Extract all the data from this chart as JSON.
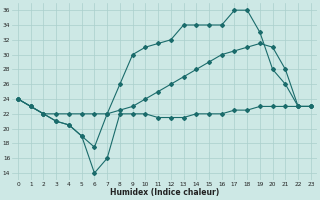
{
  "xlabel": "Humidex (Indice chaleur)",
  "background_color": "#cde8e5",
  "grid_color": "#aacfcc",
  "line_color": "#1a6b6b",
  "xlim": [
    -0.5,
    23.5
  ],
  "ylim": [
    13,
    37
  ],
  "yticks": [
    14,
    16,
    18,
    20,
    22,
    24,
    26,
    28,
    30,
    32,
    34,
    36
  ],
  "xticks": [
    0,
    1,
    2,
    3,
    4,
    5,
    6,
    7,
    8,
    9,
    10,
    11,
    12,
    13,
    14,
    15,
    16,
    17,
    18,
    19,
    20,
    21,
    22,
    23
  ],
  "series": [
    {
      "x": [
        0,
        1,
        2,
        3,
        4,
        5,
        6,
        7,
        8,
        9,
        10,
        11,
        12,
        13,
        14,
        15,
        16,
        17,
        18,
        19,
        20,
        21,
        22,
        23
      ],
      "y": [
        24,
        23,
        22,
        21,
        20.5,
        19,
        14,
        16,
        22,
        22,
        22,
        21.5,
        21.5,
        21.5,
        22,
        22,
        22,
        22.5,
        22.5,
        23,
        23,
        23,
        23,
        23
      ]
    },
    {
      "x": [
        0,
        1,
        2,
        3,
        4,
        5,
        6,
        7,
        8,
        9,
        10,
        11,
        12,
        13,
        14,
        15,
        16,
        17,
        18,
        19,
        20,
        21,
        22,
        23
      ],
      "y": [
        24,
        23,
        22,
        21,
        20.5,
        19,
        17.5,
        22,
        26,
        30,
        31,
        31.5,
        32,
        34,
        34,
        34,
        34,
        36,
        36,
        33,
        28,
        26,
        23,
        23
      ]
    },
    {
      "x": [
        0,
        1,
        2,
        3,
        4,
        5,
        6,
        7,
        8,
        9,
        10,
        11,
        12,
        13,
        14,
        15,
        16,
        17,
        18,
        19,
        20,
        21,
        22,
        23
      ],
      "y": [
        24,
        23,
        22,
        22,
        22,
        22,
        22,
        22,
        22.5,
        23,
        24,
        25,
        26,
        27,
        28,
        29,
        30,
        30.5,
        31,
        31.5,
        31,
        28,
        23,
        23
      ]
    }
  ]
}
